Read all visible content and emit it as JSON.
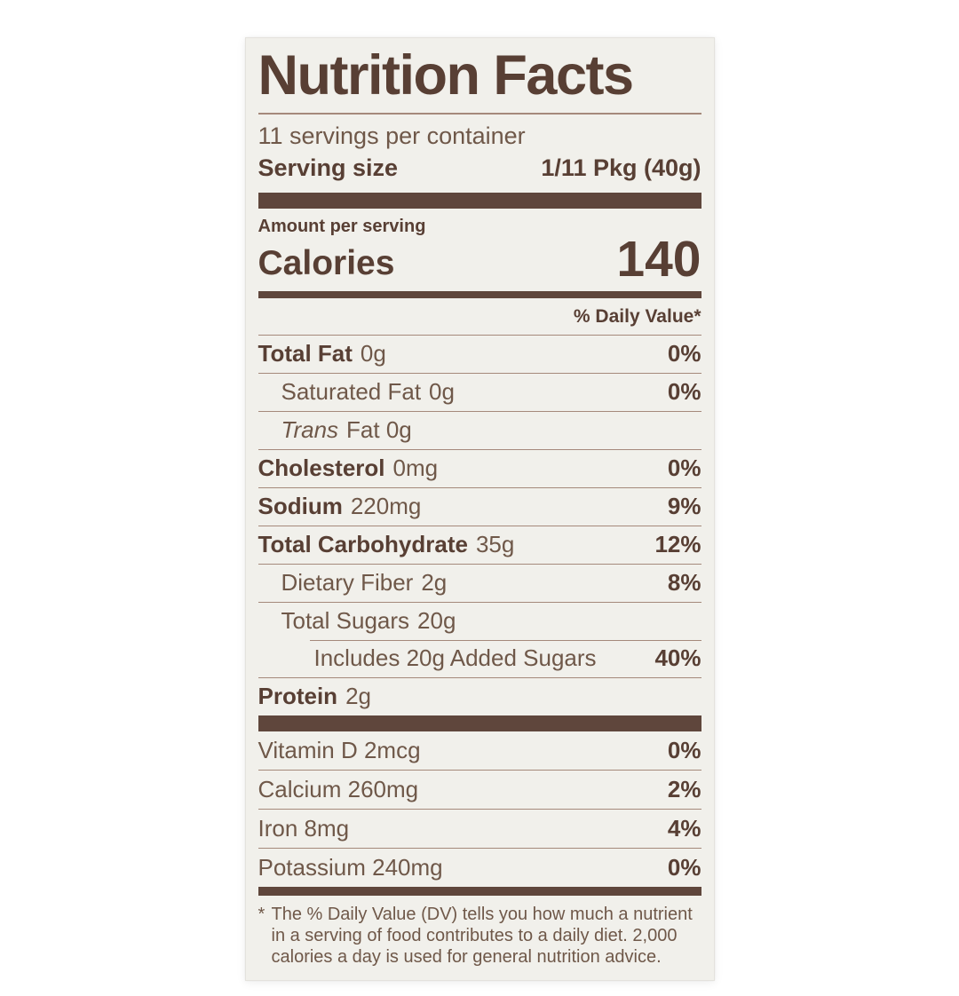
{
  "label": {
    "title": "Nutrition Facts",
    "servings_per_container": "11 servings per container",
    "serving_size_label": "Serving size",
    "serving_size_value": "1/11 Pkg (40g)",
    "amount_per_serving": "Amount per serving",
    "calories_label": "Calories",
    "calories_value": "140",
    "daily_value_header": "% Daily Value*",
    "nutrients": [
      {
        "name": "Total Fat",
        "amount": "0g",
        "dv": "0%",
        "indent": 0,
        "bold": true
      },
      {
        "name": "Saturated Fat",
        "amount": "0g",
        "dv": "0%",
        "indent": 1,
        "bold": false
      },
      {
        "name": "Trans",
        "amount": "Fat 0g",
        "dv": "",
        "indent": 1,
        "bold": false,
        "italic": true
      },
      {
        "name": "Cholesterol",
        "amount": "0mg",
        "dv": "0%",
        "indent": 0,
        "bold": true
      },
      {
        "name": "Sodium",
        "amount": "220mg",
        "dv": "9%",
        "indent": 0,
        "bold": true
      },
      {
        "name": "Total Carbohydrate",
        "amount": "35g",
        "dv": "12%",
        "indent": 0,
        "bold": true
      },
      {
        "name": "Dietary Fiber",
        "amount": "2g",
        "dv": "8%",
        "indent": 1,
        "bold": false
      },
      {
        "name": "Total Sugars",
        "amount": "20g",
        "dv": "",
        "indent": 1,
        "bold": false
      },
      {
        "name": "Includes 20g Added Sugars",
        "amount": "",
        "dv": "40%",
        "indent": 2,
        "bold": false,
        "indent_sep": true
      },
      {
        "name": "Protein",
        "amount": "2g",
        "dv": "",
        "indent": 0,
        "bold": true
      }
    ],
    "vitamins": [
      {
        "name": "Vitamin D 2mcg",
        "dv": "0%"
      },
      {
        "name": "Calcium 260mg",
        "dv": "2%"
      },
      {
        "name": "Iron 8mg",
        "dv": "4%"
      },
      {
        "name": "Potassium 240mg",
        "dv": "0%"
      }
    ],
    "footnote_marker": "*",
    "footnote": "The % Daily Value (DV) tells you how much a nutrient in a serving of food contributes to a daily diet. 2,000 calories a day is used for general nutrition advice.",
    "colors": {
      "label_background": "#f1f0eb",
      "text_dark": "#583f34",
      "text_regular": "#6f5849",
      "bar": "#5f463c",
      "hairline": "#a5897b"
    }
  }
}
